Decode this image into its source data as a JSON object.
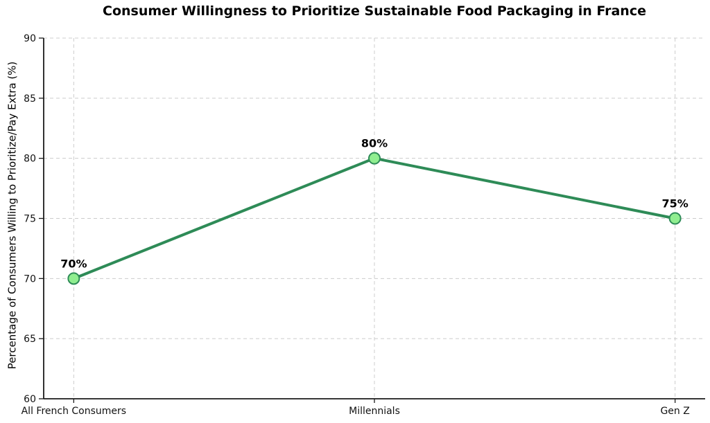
{
  "chart_data": {
    "type": "line",
    "title": "Consumer Willingness to Prioritize Sustainable Food Packaging in France",
    "xlabel": "",
    "ylabel": "Percentage of Consumers Willing to Prioritize/Pay Extra (%)",
    "categories": [
      "All French Consumers",
      "Millennials",
      "Gen Z"
    ],
    "values": [
      70,
      80,
      75
    ],
    "point_labels": [
      "70%",
      "80%",
      "75%"
    ],
    "ylim": [
      60,
      90
    ],
    "yticks": [
      60,
      65,
      70,
      75,
      80,
      85,
      90
    ],
    "grid": true,
    "grid_style": "dashed",
    "legend_position": "none",
    "colors": {
      "line": "#2e8b57",
      "marker_fill": "#90ee90",
      "marker_edge": "#2e8b57",
      "grid": "#cccccc",
      "axis": "#1a1a1a",
      "tick_text": "#111111",
      "title_text": "#000000",
      "background": "#ffffff"
    }
  }
}
